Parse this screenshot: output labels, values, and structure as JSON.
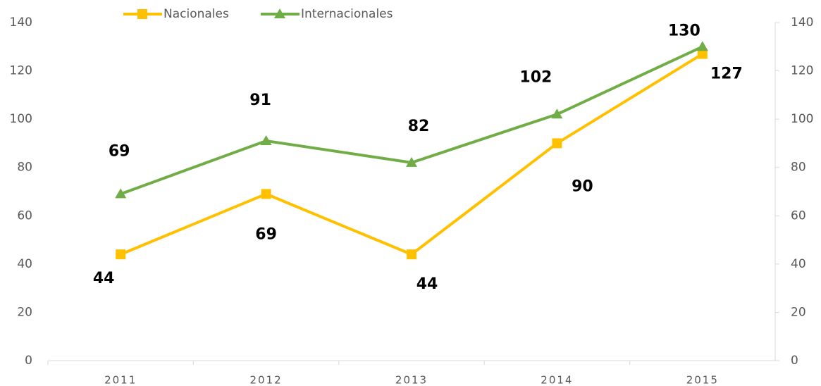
{
  "chart_data": {
    "type": "line",
    "categories": [
      "2011",
      "2012",
      "2013",
      "2014",
      "2015"
    ],
    "series": [
      {
        "name": "Nacionales",
        "color": "#ffc000",
        "marker": "square",
        "values": [
          44,
          69,
          44,
          90,
          127
        ]
      },
      {
        "name": "Internacionales",
        "color": "#70ad47",
        "marker": "triangle",
        "values": [
          69,
          91,
          82,
          102,
          130
        ]
      }
    ],
    "ylim": [
      0,
      140
    ],
    "yticks": [
      0,
      20,
      40,
      60,
      80,
      100,
      120,
      140
    ],
    "y2lim": [
      0,
      140
    ],
    "y2ticks": [
      0,
      20,
      40,
      60,
      80,
      100,
      120,
      140
    ],
    "legend": "top"
  }
}
